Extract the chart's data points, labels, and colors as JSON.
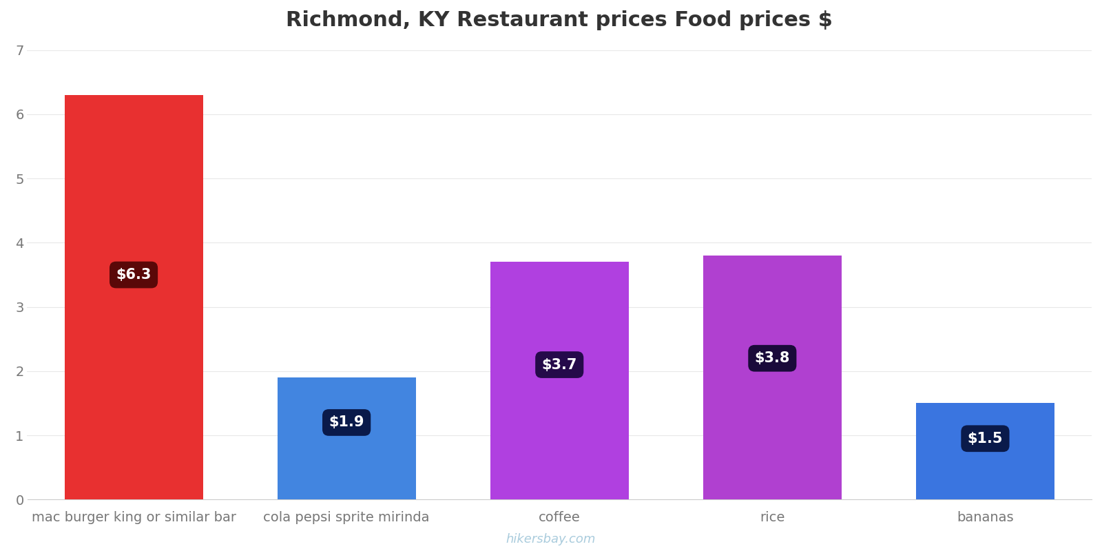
{
  "title": "Richmond, KY Restaurant prices Food prices $",
  "categories": [
    "mac burger king or similar bar",
    "cola pepsi sprite mirinda",
    "coffee",
    "rice",
    "bananas"
  ],
  "values": [
    6.3,
    1.9,
    3.7,
    3.8,
    1.5
  ],
  "bar_colors": [
    "#e83030",
    "#4285e0",
    "#b040e0",
    "#b040d0",
    "#3a75e0"
  ],
  "label_texts": [
    "$6.3",
    "$1.9",
    "$3.7",
    "$3.8",
    "$1.5"
  ],
  "label_box_colors": [
    "#5a0808",
    "#0a1a4a",
    "#250a4a",
    "#1a0a3a",
    "#0a1a4a"
  ],
  "label_y_positions": [
    3.5,
    1.2,
    2.1,
    2.2,
    0.95
  ],
  "ylim": [
    0,
    7
  ],
  "yticks": [
    0,
    1,
    2,
    3,
    4,
    5,
    6,
    7
  ],
  "title_fontsize": 22,
  "tick_fontsize": 14,
  "label_fontsize": 15,
  "watermark": "hikersbay.com",
  "background_color": "#ffffff",
  "grid_color": "#e8e8e8"
}
